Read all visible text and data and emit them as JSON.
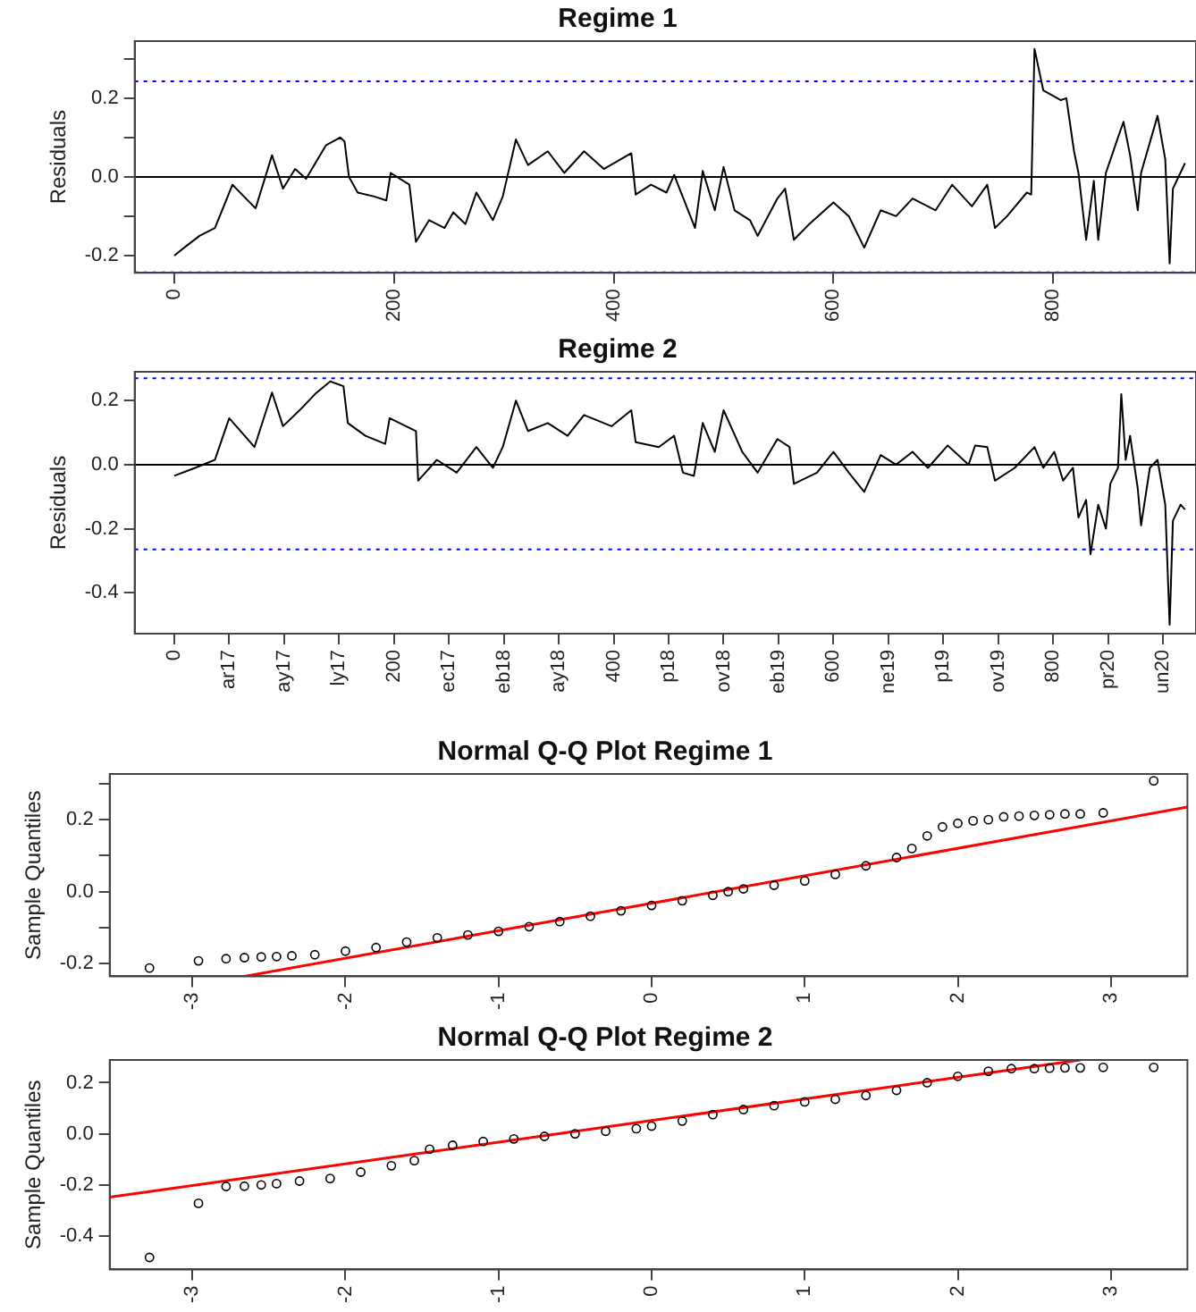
{
  "chart_data": [
    {
      "type": "line",
      "title": "Regime 1",
      "ylabel": "Residuals",
      "marker": "none",
      "xlim": [
        -36,
        930
      ],
      "xticks": [
        0,
        200,
        400,
        600,
        800
      ],
      "ylim": [
        -0.244,
        0.345
      ],
      "yticks": [
        {
          "value": -0.2,
          "label": "-0.2"
        },
        {
          "value": -0.1,
          "label": null
        },
        {
          "value": 0,
          "label": "0.0"
        },
        {
          "value": 0.1,
          "label": null
        },
        {
          "value": 0.2,
          "label": "0.2"
        },
        {
          "value": 0.3,
          "label": null
        }
      ],
      "ref_lines": [
        {
          "axis": "y",
          "value": 0,
          "color": "#000000",
          "line_style": "solid"
        },
        {
          "axis": "y",
          "value": 0.243,
          "color": "#0000ff",
          "line_style": "dotted"
        },
        {
          "axis": "y",
          "value": -0.243,
          "color": "#0000ff",
          "line_style": "dotted"
        }
      ],
      "series": [
        {
          "color": "#000000",
          "x": [
            0,
            9,
            23,
            37,
            53,
            74,
            89,
            99,
            110,
            120,
            138,
            151,
            155,
            159,
            167,
            182,
            193,
            197,
            214,
            220,
            232,
            246,
            254,
            265,
            275,
            290,
            299,
            311,
            322,
            340,
            355,
            373,
            391,
            416,
            420,
            434,
            448,
            455,
            474,
            481,
            492,
            500,
            510,
            524,
            531,
            549,
            556,
            564,
            578,
            600,
            614,
            628,
            643,
            657,
            672,
            693,
            708,
            726,
            740,
            747,
            758,
            776,
            780,
            783,
            791,
            807,
            812,
            819,
            823,
            830,
            837,
            841,
            848,
            859,
            864,
            870,
            877,
            880,
            895,
            902,
            906,
            909,
            920
          ],
          "values": [
            -0.2,
            -0.18,
            -0.15,
            -0.13,
            -0.02,
            -0.08,
            0.055,
            -0.03,
            0.02,
            -0.005,
            0.08,
            0.1,
            0.09,
            0.0,
            -0.04,
            -0.05,
            -0.06,
            0.01,
            -0.02,
            -0.165,
            -0.11,
            -0.13,
            -0.09,
            -0.12,
            -0.04,
            -0.11,
            -0.05,
            0.095,
            0.03,
            0.065,
            0.01,
            0.065,
            0.02,
            0.06,
            -0.045,
            -0.02,
            -0.04,
            0.005,
            -0.13,
            0.015,
            -0.085,
            0.025,
            -0.085,
            -0.11,
            -0.15,
            -0.055,
            -0.03,
            -0.16,
            -0.12,
            -0.065,
            -0.1,
            -0.18,
            -0.085,
            -0.1,
            -0.055,
            -0.085,
            -0.02,
            -0.075,
            -0.02,
            -0.13,
            -0.1,
            -0.04,
            -0.045,
            0.325,
            0.22,
            0.195,
            0.2,
            0.065,
            0.01,
            -0.16,
            -0.01,
            -0.16,
            0.01,
            0.1,
            0.14,
            0.055,
            -0.085,
            0.01,
            0.155,
            0.045,
            -0.22,
            -0.03,
            0.035
          ]
        }
      ]
    },
    {
      "type": "line",
      "title": "Regime 2",
      "ylabel": "Residuals",
      "marker": "none",
      "xlim": [
        -36,
        930
      ],
      "xticks": [
        0,
        {
          "value": 50,
          "label": "ar17"
        },
        {
          "value": 100,
          "label": "ay17"
        },
        {
          "value": 150,
          "label": "ly17"
        },
        200,
        {
          "value": 250,
          "label": "ec17"
        },
        {
          "value": 300,
          "label": "eb18"
        },
        {
          "value": 350,
          "label": "ay18"
        },
        400,
        {
          "value": 450,
          "label": "p18"
        },
        {
          "value": 500,
          "label": "ov18"
        },
        {
          "value": 550,
          "label": "eb19"
        },
        600,
        {
          "value": 650,
          "label": "ne19"
        },
        {
          "value": 700,
          "label": "p19"
        },
        {
          "value": 750,
          "label": "ov19"
        },
        800,
        {
          "value": 850,
          "label": "pr20"
        },
        {
          "value": 900,
          "label": "un20"
        }
      ],
      "ylim": [
        -0.528,
        0.29
      ],
      "yticks": [
        {
          "value": -0.4,
          "label": "-0.4"
        },
        {
          "value": -0.2,
          "label": "-0.2"
        },
        {
          "value": 0,
          "label": "0.0"
        },
        {
          "value": 0.2,
          "label": "0.2"
        }
      ],
      "ref_lines": [
        {
          "axis": "y",
          "value": 0,
          "color": "#000000",
          "line_style": "solid"
        },
        {
          "axis": "y",
          "value": 0.27,
          "color": "#0000ff",
          "line_style": "dotted"
        },
        {
          "axis": "y",
          "value": -0.265,
          "color": "#0000ff",
          "line_style": "dotted"
        }
      ],
      "series": [
        {
          "color": "#000000",
          "x": [
            0,
            19,
            37,
            50,
            73,
            89,
            99,
            117,
            128,
            142,
            154,
            158,
            174,
            192,
            196,
            220,
            222,
            239,
            257,
            275,
            290,
            299,
            311,
            322,
            340,
            358,
            373,
            398,
            416,
            420,
            441,
            455,
            463,
            473,
            481,
            492,
            500,
            517,
            531,
            549,
            560,
            564,
            585,
            600,
            614,
            628,
            643,
            657,
            672,
            686,
            704,
            723,
            729,
            740,
            747,
            765,
            783,
            791,
            801,
            809,
            818,
            823,
            830,
            834,
            841,
            848,
            852,
            859,
            862,
            866,
            870,
            877,
            880,
            888,
            895,
            902,
            906,
            909,
            916,
            920
          ],
          "values": [
            -0.035,
            -0.01,
            0.015,
            0.145,
            0.055,
            0.225,
            0.12,
            0.18,
            0.22,
            0.26,
            0.245,
            0.13,
            0.09,
            0.065,
            0.145,
            0.105,
            -0.05,
            0.015,
            -0.025,
            0.055,
            -0.01,
            0.055,
            0.2,
            0.105,
            0.13,
            0.09,
            0.155,
            0.12,
            0.17,
            0.07,
            0.055,
            0.09,
            -0.025,
            -0.035,
            0.13,
            0.04,
            0.17,
            0.04,
            -0.025,
            0.08,
            0.055,
            -0.06,
            -0.025,
            0.04,
            -0.025,
            -0.085,
            0.03,
            0.0,
            0.04,
            -0.01,
            0.06,
            0.0,
            0.06,
            0.055,
            -0.05,
            -0.01,
            0.055,
            -0.01,
            0.04,
            -0.05,
            -0.01,
            -0.165,
            -0.11,
            -0.28,
            -0.125,
            -0.2,
            -0.06,
            -0.01,
            0.22,
            0.015,
            0.09,
            -0.075,
            -0.19,
            -0.01,
            0.015,
            -0.125,
            -0.5,
            -0.175,
            -0.125,
            -0.14
          ]
        }
      ]
    },
    {
      "type": "scatter",
      "title": "Normal Q-Q Plot Regime 1",
      "ylabel": "Sample Quantiles",
      "marker": "circle",
      "xlim": [
        -3.54,
        3.5
      ],
      "xticks": [
        -3,
        -2,
        -1,
        0,
        1,
        2,
        3
      ],
      "ylim": [
        -0.235,
        0.327
      ],
      "yticks": [
        {
          "value": -0.2,
          "label": "-0.2"
        },
        {
          "value": -0.1,
          "label": null
        },
        {
          "value": 0,
          "label": "0.0"
        },
        {
          "value": 0.1,
          "label": null
        },
        {
          "value": 0.2,
          "label": "0.2"
        },
        {
          "value": 0.3,
          "label": null
        }
      ],
      "series": [
        {
          "type": "scatter",
          "color": "#000000",
          "x": [
            -3.28,
            -2.96,
            -2.78,
            -2.66,
            -2.55,
            -2.45,
            -2.35,
            -2.2,
            -2.0,
            -1.8,
            -1.6,
            -1.4,
            -1.2,
            -1.0,
            -0.8,
            -0.6,
            -0.4,
            -0.2,
            0,
            0.2,
            0.4,
            0.5,
            0.6,
            0.8,
            1.0,
            1.2,
            1.4,
            1.6,
            1.7,
            1.8,
            1.9,
            2.0,
            2.1,
            2.2,
            2.3,
            2.4,
            2.5,
            2.6,
            2.7,
            2.8,
            2.95,
            3.28
          ],
          "values": [
            -0.212,
            -0.192,
            -0.186,
            -0.183,
            -0.181,
            -0.18,
            -0.178,
            -0.175,
            -0.165,
            -0.155,
            -0.14,
            -0.128,
            -0.12,
            -0.11,
            -0.097,
            -0.083,
            -0.068,
            -0.053,
            -0.038,
            -0.025,
            -0.01,
            0.0,
            0.008,
            0.018,
            0.03,
            0.048,
            0.072,
            0.095,
            0.12,
            0.155,
            0.18,
            0.19,
            0.197,
            0.2,
            0.208,
            0.21,
            0.212,
            0.214,
            0.216,
            0.216,
            0.219,
            0.308
          ]
        },
        {
          "type": "line",
          "color": "#ff0000",
          "marker": "none",
          "x": [
            -2.66,
            3.5
          ],
          "values": [
            -0.235,
            0.235
          ]
        }
      ]
    },
    {
      "type": "scatter",
      "title": "Normal Q-Q Plot Regime 2",
      "ylabel": "Sample Quantiles",
      "marker": "circle",
      "xlim": [
        -3.54,
        3.5
      ],
      "xticks": [
        -3,
        -2,
        -1,
        0,
        1,
        2,
        3
      ],
      "ylim": [
        -0.531,
        0.289
      ],
      "yticks": [
        {
          "value": -0.4,
          "label": "-0.4"
        },
        {
          "value": -0.2,
          "label": "-0.2"
        },
        {
          "value": 0,
          "label": "0.0"
        },
        {
          "value": 0.2,
          "label": "0.2"
        }
      ],
      "series": [
        {
          "type": "scatter",
          "color": "#000000",
          "x": [
            -3.28,
            -2.96,
            -2.78,
            -2.66,
            -2.55,
            -2.45,
            -2.3,
            -2.1,
            -1.9,
            -1.7,
            -1.55,
            -1.45,
            -1.3,
            -1.1,
            -0.9,
            -0.7,
            -0.5,
            -0.3,
            -0.1,
            0,
            0.2,
            0.4,
            0.6,
            0.8,
            1.0,
            1.2,
            1.4,
            1.6,
            1.8,
            2.0,
            2.2,
            2.35,
            2.5,
            2.6,
            2.7,
            2.8,
            2.95,
            3.28
          ],
          "values": [
            -0.484,
            -0.272,
            -0.206,
            -0.205,
            -0.2,
            -0.195,
            -0.185,
            -0.175,
            -0.15,
            -0.125,
            -0.105,
            -0.06,
            -0.045,
            -0.03,
            -0.02,
            -0.01,
            0.0,
            0.01,
            0.02,
            0.03,
            0.05,
            0.075,
            0.095,
            0.11,
            0.125,
            0.135,
            0.15,
            0.17,
            0.2,
            0.225,
            0.245,
            0.255,
            0.255,
            0.257,
            0.258,
            0.258,
            0.26,
            0.26
          ]
        },
        {
          "type": "line",
          "color": "#ff0000",
          "marker": "none",
          "x": [
            -3.54,
            2.8
          ],
          "values": [
            -0.248,
            0.289
          ]
        }
      ]
    }
  ]
}
